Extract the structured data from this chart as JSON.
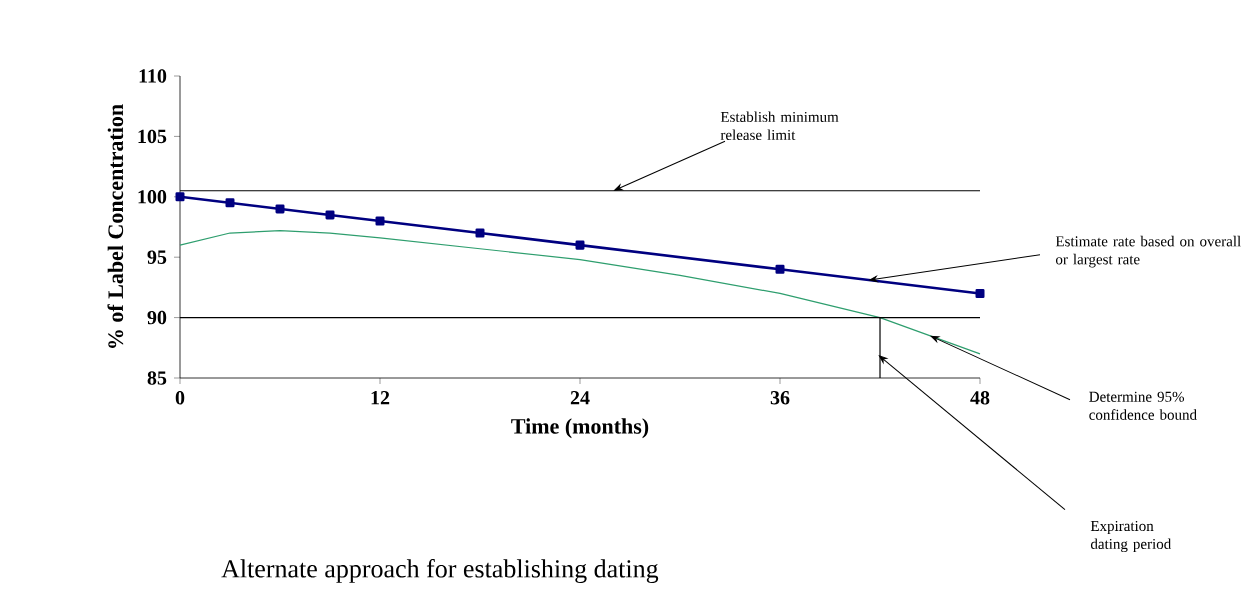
{
  "chart_data": {
    "type": "line",
    "xlabel": "Time (months)",
    "ylabel": "% of Label Concentration",
    "x": [
      0,
      3,
      6,
      9,
      12,
      18,
      24,
      36,
      48
    ],
    "series": [
      {
        "color": "#000080",
        "values": [
          100,
          99.5,
          99,
          98.5,
          98,
          97,
          96,
          94,
          92
        ],
        "marker": "square"
      },
      {
        "color": "#2e9e6e",
        "x": [
          0,
          3,
          6,
          9,
          12,
          18,
          24,
          30,
          36,
          42,
          48
        ],
        "values": [
          96,
          97,
          97.2,
          97,
          96.6,
          95.7,
          94.8,
          93.5,
          92,
          90,
          87
        ],
        "marker": "none"
      },
      {
        "color": "#000000",
        "x": [
          42,
          42
        ],
        "values": [
          85,
          90
        ],
        "marker": "none"
      }
    ],
    "xlim": [
      0,
      48
    ],
    "ylim": [
      85,
      110
    ],
    "xticks": [
      0,
      12,
      24,
      36,
      48
    ],
    "yticks": [
      85,
      90,
      95,
      100,
      105,
      110
    ],
    "grid": false,
    "line_style": "solid",
    "ref_lines": [
      {
        "axis": "y",
        "value": 100.5,
        "color": "#000000"
      },
      {
        "axis": "y",
        "value": 90,
        "color": "#000000"
      }
    ],
    "annotations": [
      {
        "text": "Establish minimum release limit",
        "x": 26,
        "y": 100.5
      },
      {
        "text": "Estimate rate based on overall or largest rate",
        "x": 41.3,
        "y": 93.1
      },
      {
        "text": "Determine 95% confidence bound",
        "x": 45,
        "y": 88.5
      },
      "Expiration dating period",
      "Alternate approach for establishing dating"
    ]
  }
}
